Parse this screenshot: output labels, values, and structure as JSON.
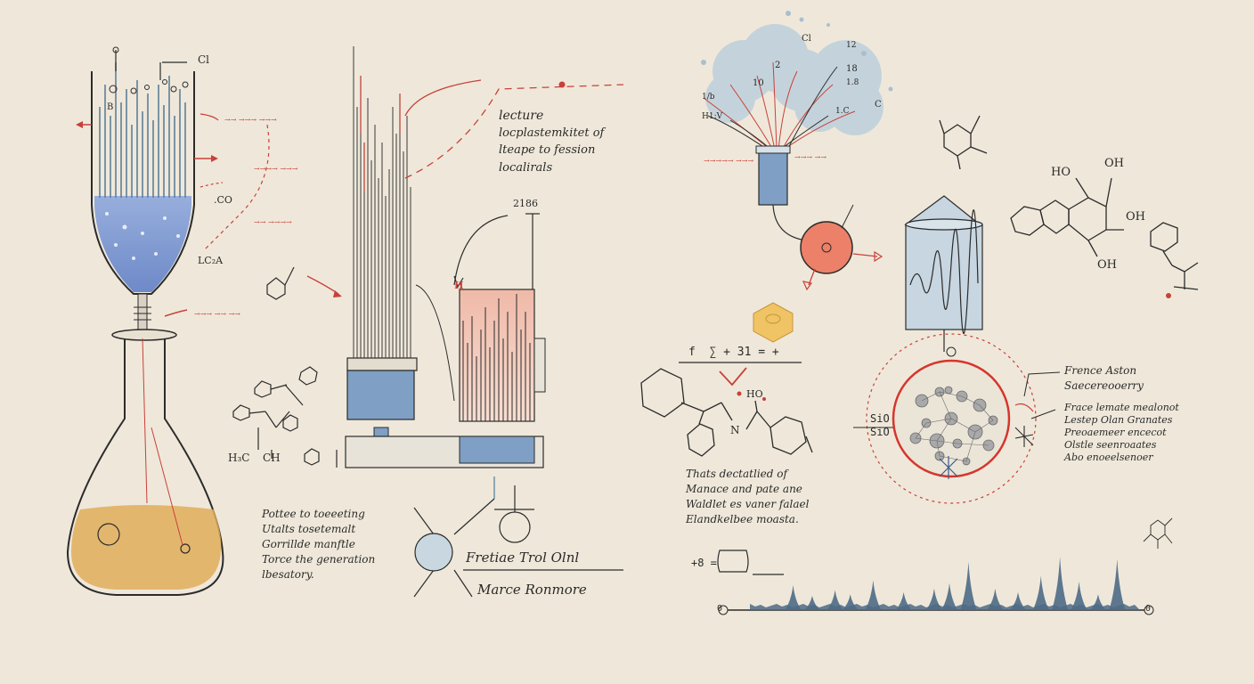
{
  "colors": {
    "paper": "#efe8da",
    "ink": "#2b2b2b",
    "red_annotation": "#c8413a",
    "blue_liquid": "#6f8fd0",
    "amber_liquid": "#e0ad5a",
    "steel_blue": "#7f9fc4",
    "pale_blue": "#c7d6e0",
    "peak_fill": "#4d6a85",
    "hexagon": "#f0c464"
  },
  "annotations": {
    "cl_top": "Cl",
    "b_label": "B",
    "co_label": ".CO",
    "lc_label": "LC₂A",
    "small_note_1": "→→ →→→ →→→",
    "small_note_2": "→→→→ →→→",
    "small_note_3": "→→ →→→→",
    "small_note_4": "→→→ →→ →→"
  },
  "mid_text": {
    "lecture_title": "lecture",
    "lecture_lines": [
      "locplastemkitet of",
      "lteape to fession",
      "localirals"
    ],
    "zone_label": "2186",
    "h_label": "H"
  },
  "left_bottom_text": {
    "lines": [
      "Pottee to toeeeting",
      "Utalts tosetemalt",
      "Gorrillde manftle",
      "Torce the generation",
      "lbesatory."
    ]
  },
  "center_bottom": {
    "title": "Fretiae Trol Olnl",
    "subtitle": "Marce Ronmore"
  },
  "right_top": {
    "labels": [
      "Cl",
      "2",
      "10",
      "18",
      "12",
      "1.8",
      "1/b",
      "1.C",
      "H1:V",
      "C"
    ],
    "note_1": "→→→→→ →→→",
    "note_2": "→→→ →→"
  },
  "equation": "f  ∑ + 31 = +",
  "bottom_equation": "+8 =",
  "formula_labels": {
    "ho": "HO",
    "oh": "OH",
    "n": "N",
    "h3c": "H₃C",
    "ch": "CH",
    "sio": [
      "SiO",
      "SiO"
    ]
  },
  "mid_right_text": {
    "lines": [
      "Thats dectatlied of",
      "Manace and pate ane",
      "Waldlet es vaner falael",
      "Elandkelbee moasta."
    ]
  },
  "right_text": {
    "title_1": "Frence Aston",
    "title_2": "Saecereooerry",
    "lines": [
      "Frace lemate mealonot",
      "Lestep Olan Granates",
      "Preoaemeer encecot",
      "Olstle seenroaates",
      "Abo enoeelsenoer"
    ]
  },
  "chart_data": {
    "type": "line",
    "title": "",
    "xlabel": "",
    "ylabel": "",
    "x_endpoints": [
      "0",
      "0"
    ],
    "peaks": [
      {
        "x": 0.09,
        "h": 0.35
      },
      {
        "x": 0.14,
        "h": 0.2
      },
      {
        "x": 0.2,
        "h": 0.28
      },
      {
        "x": 0.24,
        "h": 0.22
      },
      {
        "x": 0.3,
        "h": 0.42
      },
      {
        "x": 0.38,
        "h": 0.25
      },
      {
        "x": 0.46,
        "h": 0.3
      },
      {
        "x": 0.5,
        "h": 0.38
      },
      {
        "x": 0.55,
        "h": 0.68
      },
      {
        "x": 0.62,
        "h": 0.3
      },
      {
        "x": 0.68,
        "h": 0.25
      },
      {
        "x": 0.74,
        "h": 0.48
      },
      {
        "x": 0.79,
        "h": 0.75
      },
      {
        "x": 0.84,
        "h": 0.4
      },
      {
        "x": 0.89,
        "h": 0.22
      },
      {
        "x": 0.94,
        "h": 0.72
      }
    ]
  }
}
